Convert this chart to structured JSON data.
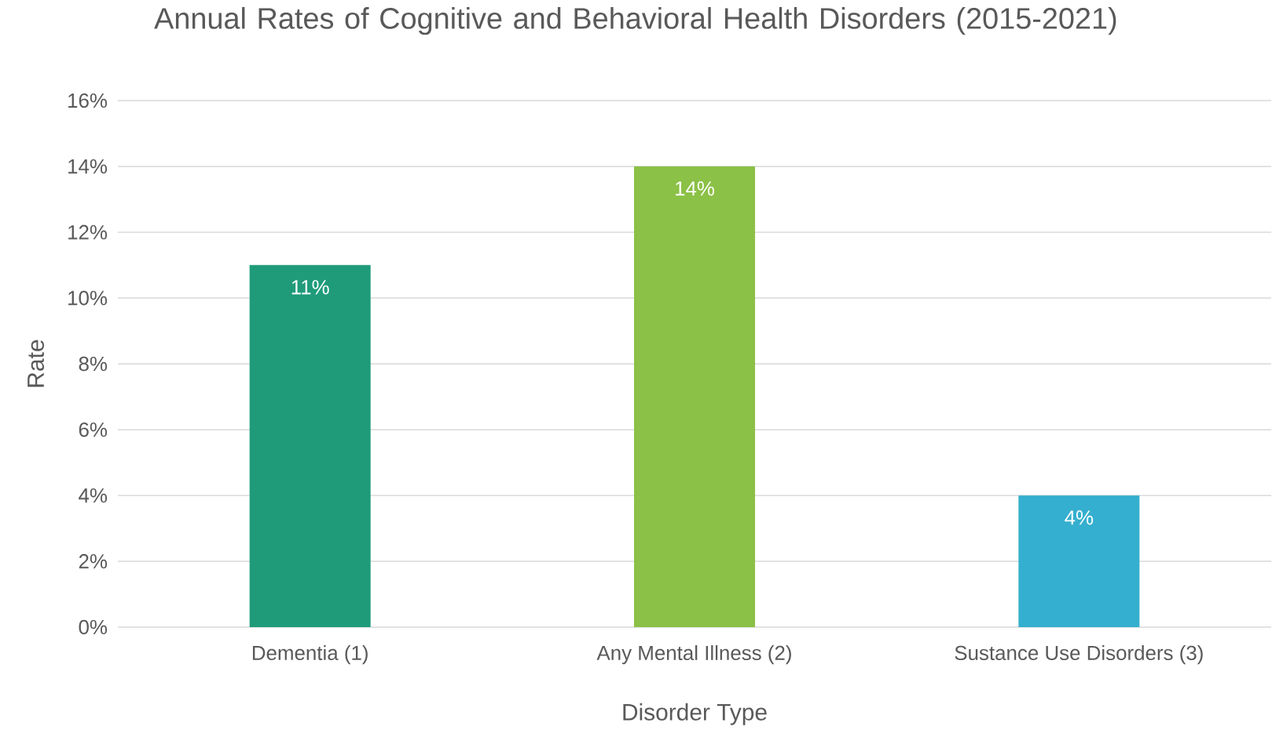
{
  "chart_data": {
    "type": "bar",
    "title": "Annual Rates of Cognitive and Behavioral Health Disorders (2015-2021)",
    "xlabel": "Disorder Type",
    "ylabel": "Rate",
    "categories": [
      "Dementia (1)",
      "Any Mental Illness (2)",
      "Sustance Use Disorders (3)"
    ],
    "values": [
      11,
      14,
      4
    ],
    "colors": [
      "#1f9b7a",
      "#8bc146",
      "#35afcf"
    ],
    "value_labels": [
      "11%",
      "14%",
      "4%"
    ],
    "ylim": [
      0,
      16
    ],
    "yticks": [
      {
        "value": 0,
        "label": "0%"
      },
      {
        "value": 2,
        "label": "2%"
      },
      {
        "value": 4,
        "label": "4%"
      },
      {
        "value": 6,
        "label": "6%"
      },
      {
        "value": 8,
        "label": "8%"
      },
      {
        "value": 10,
        "label": "10%"
      },
      {
        "value": 12,
        "label": "12%"
      },
      {
        "value": 14,
        "label": "14%"
      },
      {
        "value": 16,
        "label": "16%"
      }
    ],
    "grid": "y"
  }
}
